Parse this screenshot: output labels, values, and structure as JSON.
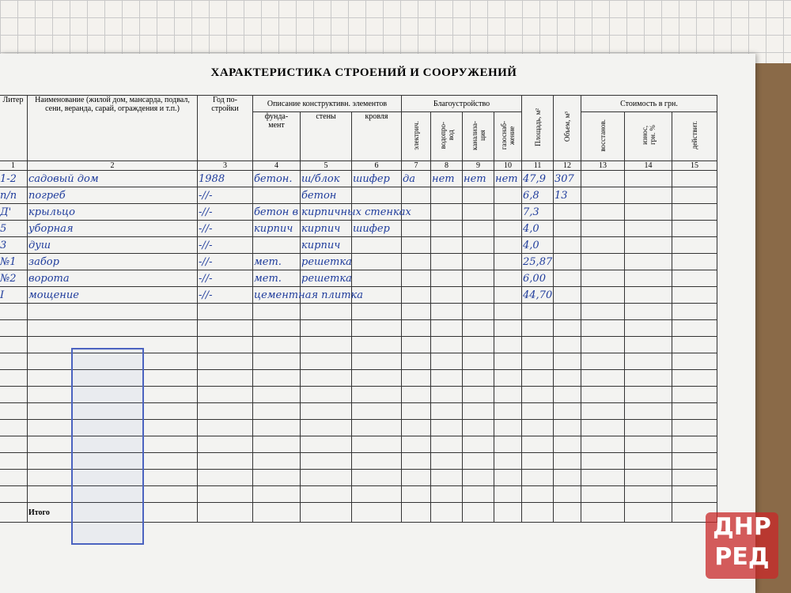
{
  "title": "ХАРАКТЕРИСТИКА СТРОЕНИЙ И СООРУЖЕНИЙ",
  "table": {
    "header": {
      "liter": "Литер",
      "name": "Наименование (жилой дом, мансарда, подвал, сени, веранда, сарай, ограждения и т.п.)",
      "year": "Год по-\nстройки",
      "construction": {
        "label": "Описание конструктивн. элементов",
        "foundation": "фунда-\nмент",
        "walls": "стены",
        "roof": "кровля"
      },
      "amenities": {
        "label": "Благоустройство",
        "electric": "электрич.",
        "water": "водопро-\nвод",
        "sewer": "канализа-\nция",
        "gas": "газоснаб-\nжение"
      },
      "area": "Площадь, м²",
      "volume": "Объем, м³",
      "cost": {
        "label": "Стоимость в грн.",
        "restoration": "восстанов.",
        "wear": "износ,\nгрн. %",
        "actual": "действит."
      }
    },
    "column_numbers": [
      1,
      2,
      3,
      4,
      5,
      6,
      7,
      8,
      9,
      10,
      11,
      12,
      13,
      14,
      15
    ],
    "rows": [
      {
        "liter": "1-2",
        "name": "садовый дом",
        "year": "1988",
        "foundation": "бетон.",
        "walls": "ш/блок",
        "roof": "шифер",
        "electric": "да",
        "water": "нет",
        "sewer": "нет",
        "gas": "нет",
        "area": "47,9",
        "volume": "307"
      },
      {
        "liter": "п/п",
        "name": "погреб",
        "year": "-//-",
        "walls": "бетон",
        "area": "6,8",
        "volume": "13"
      },
      {
        "liter": "Д'",
        "name": "крыльцо",
        "year": "-//-",
        "foundation": "бетон в кирпичных стенках",
        "area": "7,3"
      },
      {
        "liter": "5",
        "name": "уборная",
        "year": "-//-",
        "foundation": "кирпич",
        "walls": "кирпич",
        "roof": "шифер",
        "area": "4,0"
      },
      {
        "liter": "3",
        "name": "душ",
        "year": "-//-",
        "walls": "кирпич",
        "area": "4,0"
      },
      {
        "liter": "№1",
        "name": "забор",
        "year": "-//-",
        "foundation": "мет.",
        "walls": "решетка",
        "area": "25,87"
      },
      {
        "liter": "№2",
        "name": "ворота",
        "year": "-//-",
        "foundation": "мет.",
        "walls": "решетка",
        "area": "6,00"
      },
      {
        "liter": "I",
        "name": "мощение",
        "year": "-//-",
        "foundation": "цементная плитка",
        "area": "44,70"
      }
    ],
    "total_label": "Итого"
  },
  "watermark": {
    "line1": "ДНР",
    "line2": "РЕД"
  }
}
